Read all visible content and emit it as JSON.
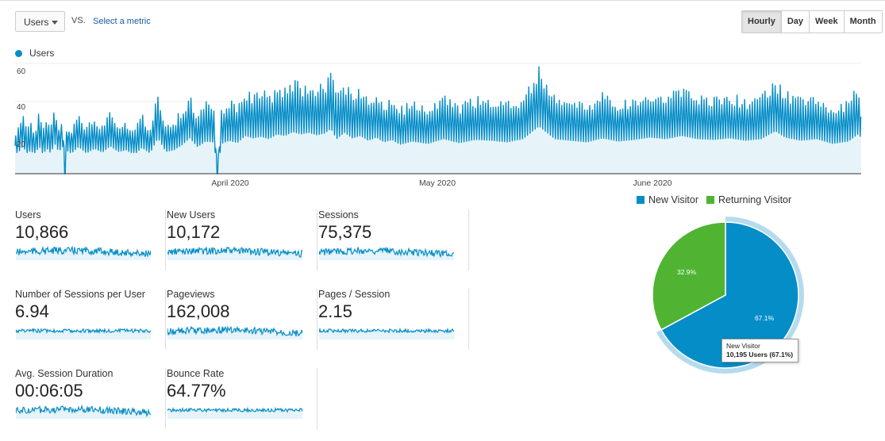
{
  "controls": {
    "metric_select": "Users",
    "vs_label": "VS.",
    "select_metric_link": "Select a metric",
    "granularity": [
      {
        "label": "Hourly",
        "active": true
      },
      {
        "label": "Day",
        "active": false
      },
      {
        "label": "Week",
        "active": false
      },
      {
        "label": "Month",
        "active": false
      }
    ]
  },
  "main_chart_legend": "Users",
  "colors": {
    "primary": "#058dc7",
    "fill": "#e6f4fa",
    "returning": "#50b432",
    "halo": "#b5dbed"
  },
  "chart_data": [
    {
      "type": "line",
      "series": [
        {
          "name": "Users"
        }
      ],
      "x_tick_labels": [
        "April 2020",
        "May 2020",
        "June 2020"
      ],
      "y_tick_labels": [
        "60",
        "40",
        "20"
      ],
      "ylim": [
        0,
        60
      ],
      "sampled_points": [
        [
          0,
          20
        ],
        [
          5,
          28
        ],
        [
          10,
          35
        ],
        [
          15,
          25
        ],
        [
          20,
          30
        ],
        [
          25,
          22
        ],
        [
          30,
          36
        ],
        [
          35,
          24
        ],
        [
          40,
          32
        ],
        [
          45,
          26
        ],
        [
          50,
          38
        ],
        [
          55,
          28
        ],
        [
          60,
          34
        ],
        [
          63,
          0
        ],
        [
          65,
          30
        ],
        [
          70,
          25
        ],
        [
          80,
          34
        ],
        [
          90,
          26
        ],
        [
          100,
          32
        ],
        [
          110,
          27
        ],
        [
          120,
          35
        ],
        [
          130,
          28
        ],
        [
          140,
          30
        ],
        [
          150,
          24
        ],
        [
          160,
          33
        ],
        [
          170,
          26
        ],
        [
          180,
          45
        ],
        [
          190,
          28
        ],
        [
          200,
          30
        ],
        [
          210,
          36
        ],
        [
          220,
          45
        ],
        [
          230,
          34
        ],
        [
          240,
          41
        ],
        [
          250,
          40
        ],
        [
          255,
          0
        ],
        [
          260,
          38
        ],
        [
          270,
          42
        ],
        [
          280,
          39
        ],
        [
          290,
          48
        ],
        [
          300,
          45
        ],
        [
          310,
          47
        ],
        [
          320,
          44
        ],
        [
          330,
          50
        ],
        [
          340,
          48
        ],
        [
          350,
          53
        ],
        [
          360,
          50
        ],
        [
          370,
          52
        ],
        [
          380,
          49
        ],
        [
          390,
          51
        ],
        [
          398,
          57
        ],
        [
          405,
          44
        ],
        [
          415,
          52
        ],
        [
          425,
          45
        ],
        [
          435,
          48
        ],
        [
          445,
          42
        ],
        [
          455,
          46
        ],
        [
          465,
          40
        ],
        [
          475,
          43
        ],
        [
          485,
          37
        ],
        [
          500,
          41
        ],
        [
          520,
          38
        ],
        [
          540,
          44
        ],
        [
          560,
          39
        ],
        [
          580,
          43
        ],
        [
          600,
          42
        ],
        [
          620,
          40
        ],
        [
          640,
          44
        ],
        [
          660,
          60
        ],
        [
          680,
          44
        ],
        [
          700,
          42
        ],
        [
          720,
          40
        ],
        [
          740,
          45
        ],
        [
          760,
          41
        ],
        [
          780,
          43
        ],
        [
          800,
          46
        ],
        [
          820,
          44
        ],
        [
          840,
          48
        ],
        [
          860,
          44
        ],
        [
          880,
          43
        ],
        [
          900,
          45
        ],
        [
          920,
          42
        ],
        [
          940,
          44
        ],
        [
          958,
          54
        ],
        [
          970,
          46
        ],
        [
          990,
          42
        ],
        [
          1010,
          44
        ],
        [
          1030,
          38
        ],
        [
          1050,
          41
        ],
        [
          1062,
          50
        ],
        [
          1070,
          42
        ],
        [
          1083,
          20
        ]
      ]
    },
    {
      "type": "pie",
      "series": [
        {
          "name": "Users"
        }
      ],
      "categories": [
        "New Visitor",
        "Returning Visitor"
      ],
      "values": [
        67.1,
        32.9
      ],
      "data_labels": [
        "67.1%",
        "32.9%"
      ]
    }
  ],
  "kpis": [
    {
      "name": "Users",
      "value": "10,866"
    },
    {
      "name": "New Users",
      "value": "10,172"
    },
    {
      "name": "Sessions",
      "value": "75,375"
    },
    {
      "name": "Number of Sessions per User",
      "value": "6.94"
    },
    {
      "name": "Pageviews",
      "value": "162,008"
    },
    {
      "name": "Pages / Session",
      "value": "2.15"
    },
    {
      "name": "Avg. Session Duration",
      "value": "00:06:05"
    },
    {
      "name": "Bounce Rate",
      "value": "64.77%"
    }
  ],
  "tooltip": {
    "title": "New Visitor",
    "detail": "10,195 Users (67.1%)"
  }
}
